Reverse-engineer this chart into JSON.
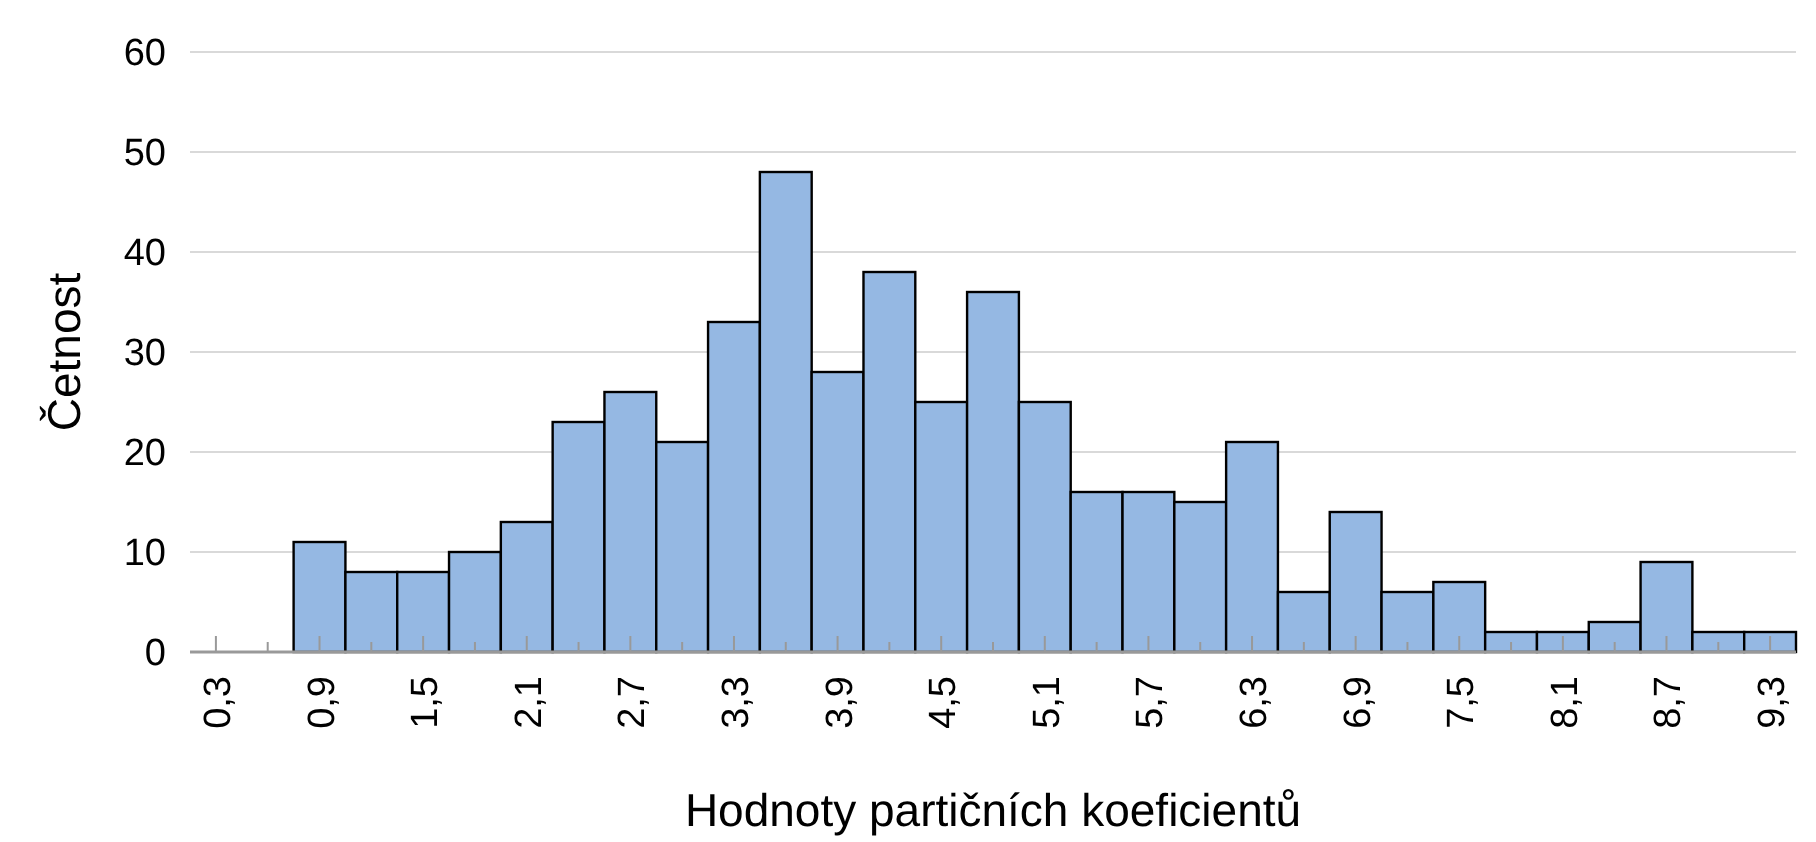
{
  "chart_data": {
    "type": "bar",
    "xlabel": "Hodnoty partičních koeficientů",
    "ylabel": "Četnost",
    "categories": [
      "0,3",
      null,
      "0,9",
      null,
      "1,5",
      null,
      "2,1",
      null,
      "2,7",
      null,
      "3,3",
      null,
      "3,9",
      null,
      "4,5",
      null,
      "5,1",
      null,
      "5,7",
      null,
      "6,3",
      null,
      "6,9",
      null,
      "7,5",
      null,
      "8,1",
      null,
      "8,7",
      null,
      "9,3"
    ],
    "values": [
      null,
      null,
      11,
      8,
      8,
      10,
      13,
      23,
      26,
      21,
      33,
      48,
      28,
      38,
      25,
      36,
      25,
      16,
      16,
      15,
      21,
      6,
      14,
      6,
      7,
      2,
      2,
      3,
      9,
      2,
      2
    ],
    "color": "#95b8e3",
    "ylim": [
      0,
      60
    ],
    "yticks": [
      0,
      10,
      20,
      30,
      40,
      50,
      60
    ],
    "grid": "y"
  }
}
